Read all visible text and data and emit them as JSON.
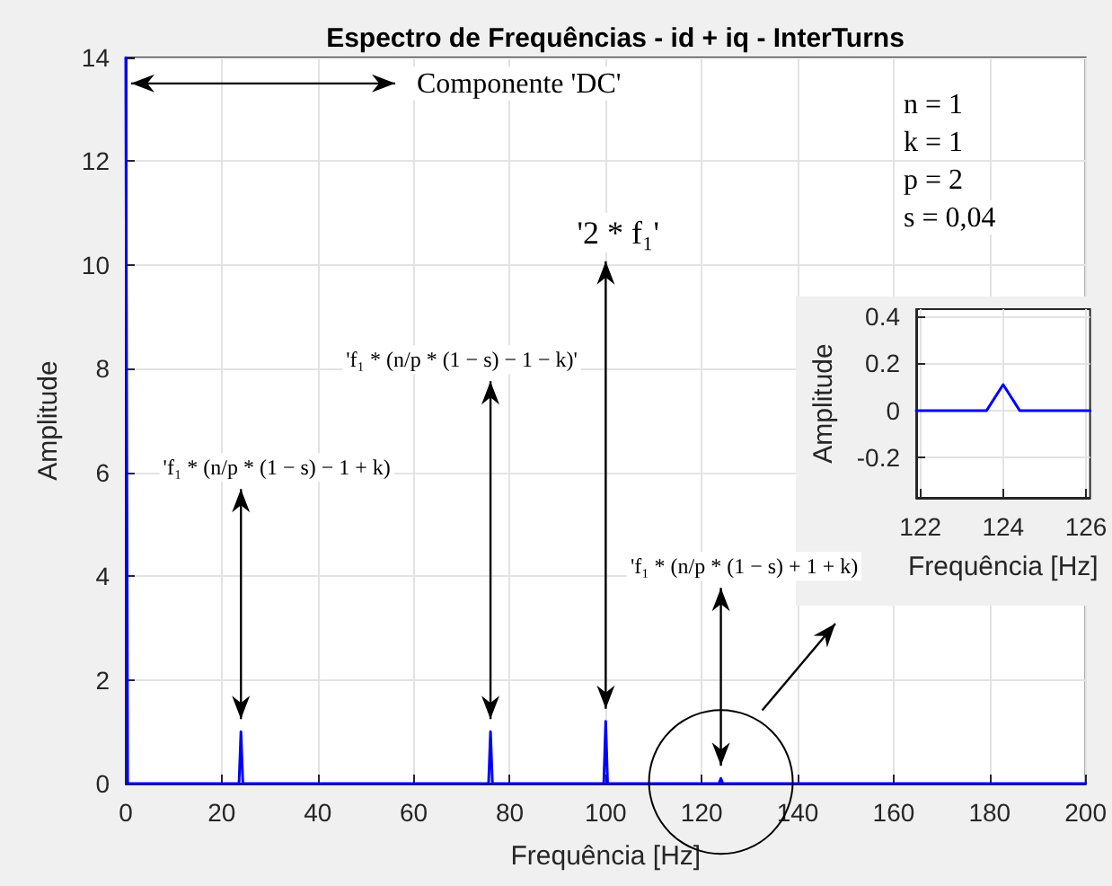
{
  "chart_data": [
    {
      "type": "line",
      "title": "Espectro de Frequências - id + iq - InterTurns",
      "xlabel": "Frequência [Hz]",
      "ylabel": "Amplitude",
      "x": [
        0,
        0.4,
        23.6,
        24,
        24.4,
        75.6,
        76,
        76.4,
        99.6,
        100,
        100.4,
        123.6,
        124,
        124.4,
        200
      ],
      "series": [
        {
          "color": "#0000ff",
          "values": [
            14,
            0,
            0,
            1,
            0,
            0,
            1,
            0,
            0,
            1.2,
            0,
            0,
            0.1,
            0,
            0
          ]
        }
      ],
      "xlim": [
        0,
        200
      ],
      "xticks": [
        0,
        20,
        40,
        60,
        80,
        100,
        120,
        140,
        160,
        180,
        200
      ],
      "ylim": [
        0,
        14
      ],
      "yticks": [
        0,
        2,
        4,
        6,
        8,
        10,
        12,
        14
      ],
      "grid": true,
      "annotations": [
        {
          "text": "Componente 'DC'",
          "x": 0,
          "y": 13.5
        },
        "n = 1",
        "k = 1",
        "p = 2",
        "s = 0,04",
        {
          "text": "'2 * f₁'",
          "x": 100,
          "y": 1.2
        },
        {
          "text": "'f₁ * (n/p * (1 − s) − 1 − k)'",
          "x": 76,
          "y": 1
        },
        {
          "text": "'f₁ * (n/p * (1 − s) − 1 + k)",
          "x": 24,
          "y": 1
        },
        {
          "text": "'f₁ * (n/p * (1 − s) + 1 + k)",
          "x": 124,
          "y": 0.1
        }
      ]
    },
    {
      "type": "line",
      "xlabel": "Frequência [Hz]",
      "ylabel": "Amplitude",
      "x": [
        121.9,
        123.6,
        124,
        124.4,
        126.1
      ],
      "series": [
        {
          "color": "#0000ff",
          "values": [
            0,
            0,
            0.11,
            0,
            0
          ]
        }
      ],
      "xlim": [
        121.9,
        126.1
      ],
      "xticks": [
        122,
        124,
        126
      ],
      "ylim": [
        -0.37,
        0.43
      ],
      "yticks": [
        -0.2,
        0,
        0.2,
        0.4
      ],
      "grid": true
    }
  ]
}
